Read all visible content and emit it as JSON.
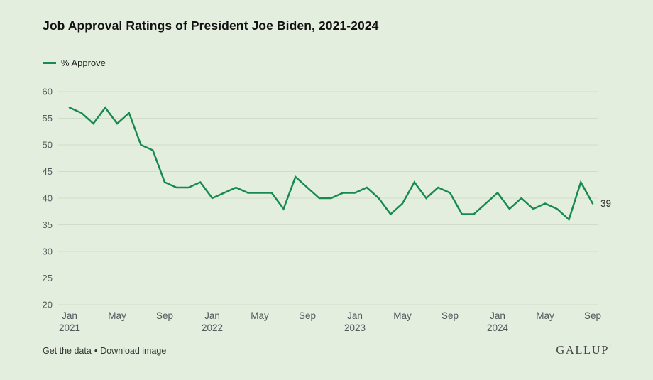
{
  "title": "Job Approval Ratings of President Joe Biden, 2021-2024",
  "legend": {
    "label": "% Approve",
    "swatch_color": "#178a4f"
  },
  "chart_data": {
    "type": "line",
    "title": "Job Approval Ratings of President Joe Biden, 2021-2024",
    "xlabel": "",
    "ylabel": "% Approve",
    "ylim": [
      20,
      60
    ],
    "grid": "horizontal",
    "legend_position": "top-left",
    "categories": [
      "Jan 2021",
      "Feb 2021",
      "Mar 2021",
      "Apr 2021",
      "May 2021",
      "Jun 2021",
      "Jul 2021",
      "Aug 2021",
      "Sep 2021",
      "Oct 2021",
      "Nov 2021",
      "Dec 2021",
      "Jan 2022",
      "Feb 2022",
      "Mar 2022",
      "Apr 2022",
      "May 2022",
      "Jun 2022",
      "Jul 2022",
      "Aug 2022",
      "Sep 2022",
      "Oct 2022",
      "Nov 2022",
      "Dec 2022",
      "Jan 2023",
      "Feb 2023",
      "Mar 2023",
      "Apr 2023",
      "May 2023",
      "Jun 2023",
      "Jul 2023",
      "Aug 2023",
      "Sep 2023",
      "Oct 2023",
      "Nov 2023",
      "Dec 2023",
      "Jan 2024",
      "Feb 2024",
      "Mar 2024",
      "Apr 2024",
      "May 2024",
      "Jun 2024",
      "Jul 2024",
      "Aug 2024",
      "Sep 2024"
    ],
    "series": [
      {
        "name": "% Approve",
        "color": "#178a4f",
        "values": [
          57,
          56,
          54,
          57,
          54,
          56,
          50,
          49,
          43,
          42,
          42,
          43,
          40,
          41,
          42,
          41,
          41,
          41,
          38,
          44,
          42,
          40,
          40,
          41,
          41,
          42,
          40,
          37,
          39,
          43,
          40,
          42,
          41,
          37,
          37,
          39,
          41,
          38,
          40,
          38,
          39,
          38,
          36,
          43,
          39
        ]
      }
    ],
    "y_axis": {
      "min": 20,
      "max": 60,
      "step": 5,
      "tick_labels": [
        "20",
        "25",
        "30",
        "35",
        "40",
        "45",
        "50",
        "55",
        "60"
      ]
    },
    "x_ticks": [
      {
        "index": 0,
        "line1": "Jan",
        "line2": "2021"
      },
      {
        "index": 4,
        "line1": "May",
        "line2": ""
      },
      {
        "index": 8,
        "line1": "Sep",
        "line2": ""
      },
      {
        "index": 12,
        "line1": "Jan",
        "line2": "2022"
      },
      {
        "index": 16,
        "line1": "May",
        "line2": ""
      },
      {
        "index": 20,
        "line1": "Sep",
        "line2": ""
      },
      {
        "index": 24,
        "line1": "Jan",
        "line2": "2023"
      },
      {
        "index": 28,
        "line1": "May",
        "line2": ""
      },
      {
        "index": 32,
        "line1": "Sep",
        "line2": ""
      },
      {
        "index": 36,
        "line1": "Jan",
        "line2": "2024"
      },
      {
        "index": 40,
        "line1": "May",
        "line2": ""
      },
      {
        "index": 44,
        "line1": "Sep",
        "line2": ""
      }
    ],
    "end_label": "39"
  },
  "footer": {
    "links": [
      "Get the data",
      "Download image"
    ],
    "separator": "•",
    "logo": "GALLUP",
    "logo_mark": "’"
  },
  "colors": {
    "background": "#e4eedf",
    "gridline": "#d1dcca",
    "line": "#178a4f",
    "title_text": "#121212",
    "axis_text": "#54585c",
    "footer_text": "#343434",
    "logo_text": "#454545"
  }
}
